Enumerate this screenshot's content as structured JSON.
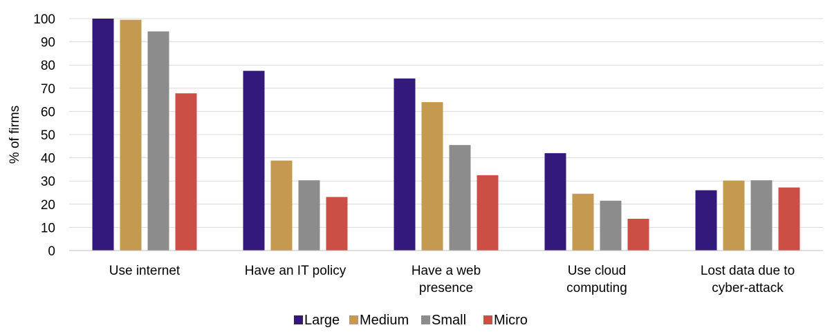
{
  "chart_data": {
    "type": "bar",
    "title": "",
    "xlabel": "",
    "ylabel": "% of firms",
    "ylim": [
      0,
      100
    ],
    "yticks": [
      "0",
      "10",
      "20",
      "30",
      "40",
      "50",
      "60",
      "70",
      "80",
      "90",
      "100"
    ],
    "categories": [
      [
        "Use internet"
      ],
      [
        "Have an IT policy"
      ],
      [
        "Have a web",
        "presence"
      ],
      [
        "Use cloud",
        "computing"
      ],
      [
        "Lost data due to",
        "cyber-attack"
      ]
    ],
    "series": [
      {
        "name": "Large",
        "color": "#34197d",
        "values": [
          100,
          77.5,
          74.2,
          42,
          26
        ]
      },
      {
        "name": "Medium",
        "color": "#c49a50",
        "values": [
          99.5,
          38.8,
          64,
          24.5,
          30.2
        ]
      },
      {
        "name": "Small",
        "color": "#8c8c8c",
        "values": [
          94.5,
          30.3,
          45.5,
          21.5,
          30.3
        ]
      },
      {
        "name": "Micro",
        "color": "#cc4f45",
        "values": [
          67.8,
          23.1,
          32.5,
          13.7,
          27.2
        ]
      }
    ],
    "grid": true,
    "legend_position": "bottom"
  }
}
